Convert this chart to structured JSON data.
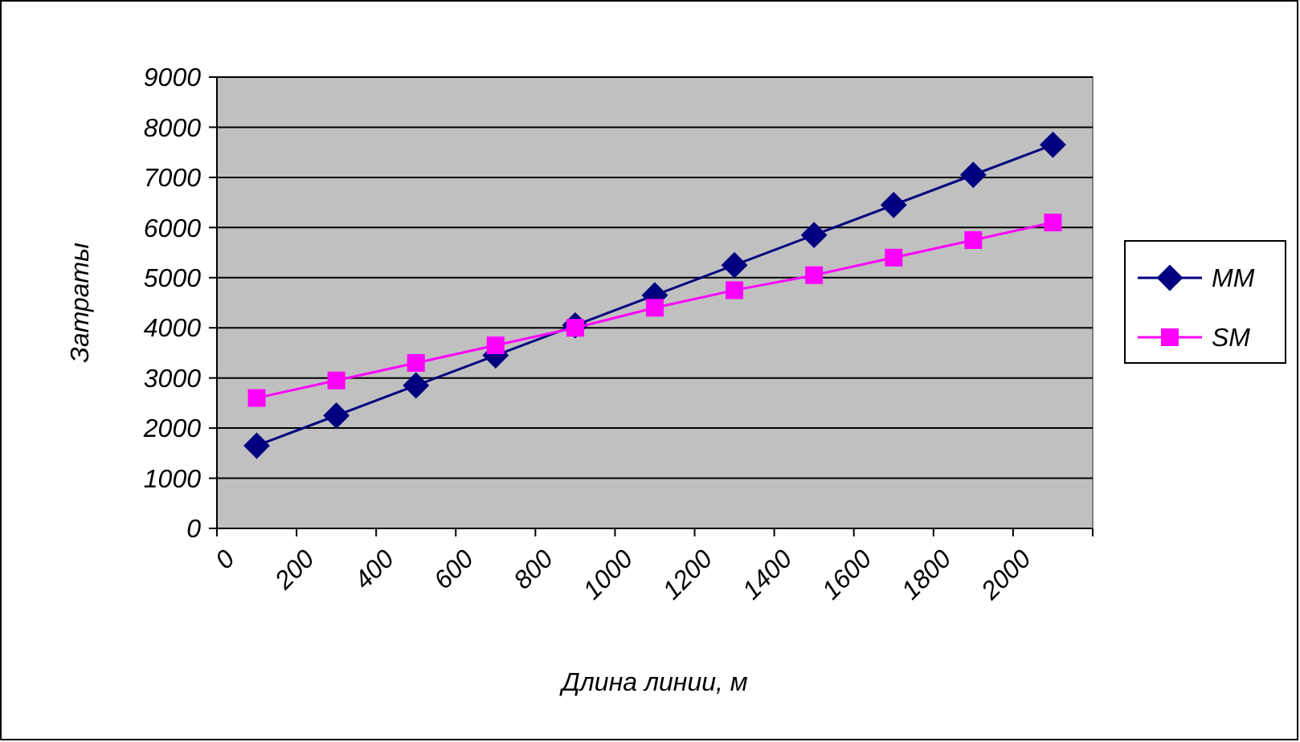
{
  "chart_data": {
    "type": "line",
    "xlabel": "Длина линии, м",
    "ylabel": "Затраты",
    "x": [
      100,
      300,
      500,
      700,
      900,
      1100,
      1300,
      1500,
      1700,
      1900,
      2100
    ],
    "series": [
      {
        "name": "MM",
        "color": "#000080",
        "marker": "diamond",
        "values": [
          1650,
          2250,
          2850,
          3450,
          4050,
          4650,
          5250,
          5850,
          6450,
          7050,
          7650
        ]
      },
      {
        "name": "SM",
        "color": "#ff00ff",
        "marker": "square",
        "values": [
          2600,
          2950,
          3300,
          3650,
          4000,
          4400,
          4750,
          5050,
          5400,
          5750,
          6100
        ]
      }
    ],
    "xlim": [
      0,
      2200
    ],
    "xticks": [
      0,
      200,
      400,
      600,
      800,
      1000,
      1200,
      1400,
      1600,
      1800,
      2000,
      {
        "value": 2200,
        "label": null
      }
    ],
    "ylim": [
      0,
      9000
    ],
    "yticks": [
      0,
      1000,
      2000,
      3000,
      4000,
      5000,
      6000,
      7000,
      8000,
      9000
    ],
    "grid": "y",
    "legend": "right"
  }
}
